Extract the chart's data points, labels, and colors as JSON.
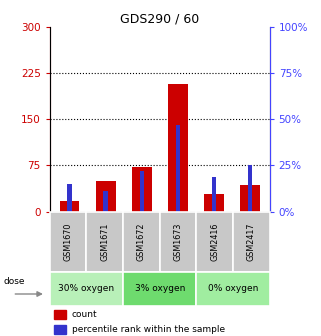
{
  "title": "GDS290 / 60",
  "samples": [
    "GSM1670",
    "GSM1671",
    "GSM1672",
    "GSM1673",
    "GSM2416",
    "GSM2417"
  ],
  "counts": [
    18,
    50,
    73,
    208,
    28,
    43
  ],
  "percentiles": [
    15,
    11,
    22,
    47,
    19,
    25
  ],
  "group_info": [
    {
      "start": 0,
      "end": 2,
      "label": "30% oxygen",
      "color": "#b8f0b8"
    },
    {
      "start": 2,
      "end": 4,
      "label": "3% oxygen",
      "color": "#6edb6e"
    },
    {
      "start": 4,
      "end": 6,
      "label": "0% oxygen",
      "color": "#a0eda0"
    }
  ],
  "left_yaxis": {
    "min": 0,
    "max": 300,
    "ticks": [
      0,
      75,
      150,
      225,
      300
    ],
    "color": "#cc0000"
  },
  "right_yaxis": {
    "min": 0,
    "max": 100,
    "ticks": [
      0,
      25,
      50,
      75,
      100
    ],
    "color": "#4444ff"
  },
  "bar_color": "#cc0000",
  "percentile_color": "#3333cc",
  "bg_color": "#ffffff",
  "dose_label": "dose",
  "legend_count": "count",
  "legend_percentile": "percentile rank within the sample",
  "bar_width": 0.55,
  "percentile_bar_width": 0.12,
  "sample_bg": "#c8c8c8",
  "grid_ticks": [
    75,
    150,
    225
  ]
}
